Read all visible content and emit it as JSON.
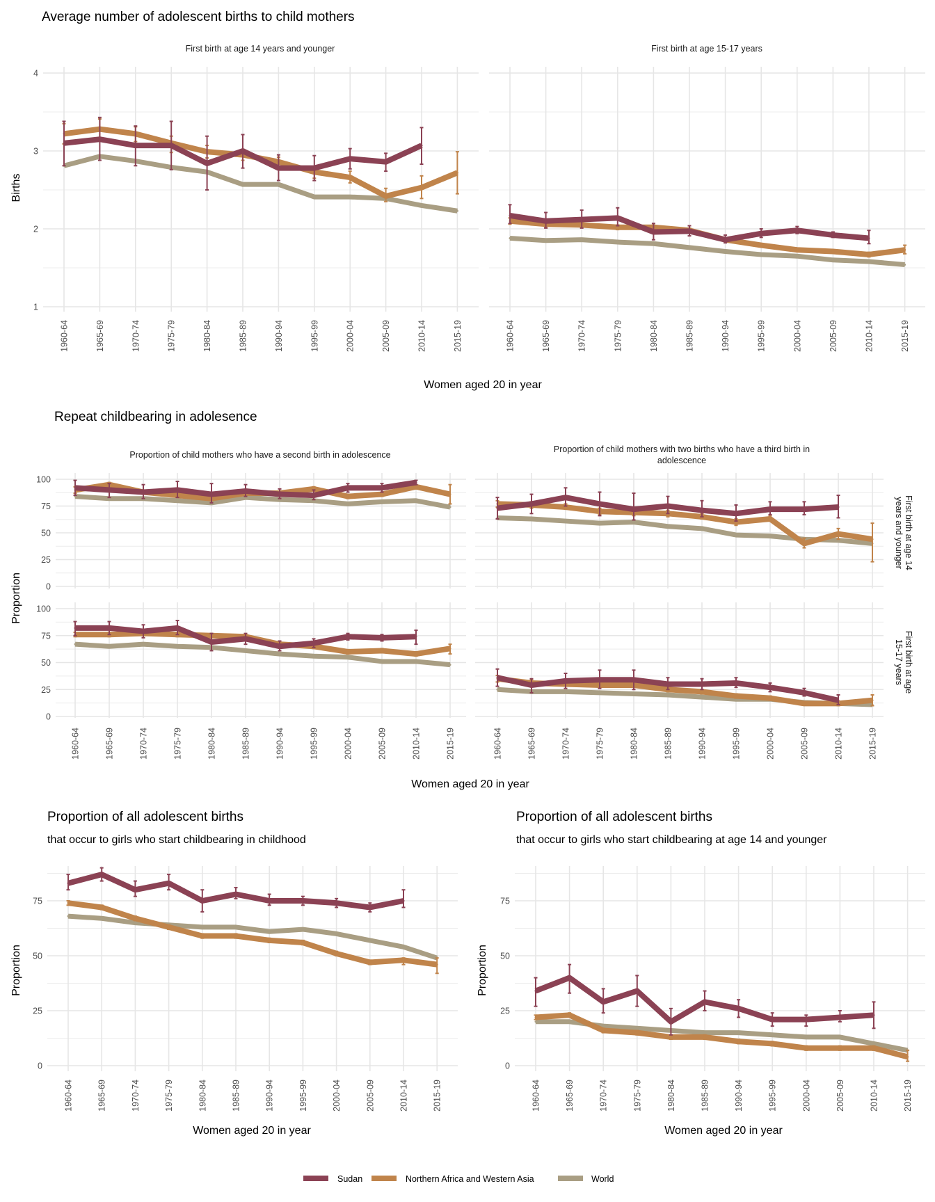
{
  "x_categories": [
    "1960-64",
    "1965-69",
    "1970-74",
    "1975-79",
    "1980-84",
    "1985-89",
    "1990-94",
    "1995-99",
    "2000-04",
    "2005-09",
    "2010-14",
    "2015-19"
  ],
  "legend": [
    {
      "name": "Sudan",
      "color": "#8b4254"
    },
    {
      "name": "Northern Africa and Western Asia",
      "color": "#c0844b"
    },
    {
      "name": "World",
      "color": "#a99e83"
    }
  ],
  "sections": {
    "top": {
      "title": "Average number of adolescent births to child mothers",
      "ylabel": "Births",
      "xlabel": "Women aged 20 in year"
    },
    "middle": {
      "title": "Repeat childbearing in adolesence",
      "ylabel": "Proportion",
      "xlabel": "Women aged 20 in year",
      "strips": [
        "First birth at age 14 years and younger",
        "First birth at age 15-17 years"
      ]
    },
    "bottom_left": {
      "title": "Proportion of all adolescent births",
      "subtitle": "that occur to girls who start childbearing in childhood",
      "ylabel": "Proportion",
      "xlabel": "Women aged 20 in year"
    },
    "bottom_right": {
      "title": "Proportion of all adolescent births",
      "subtitle": "that occur to girls who start childbearing at age 14 and younger",
      "ylabel": "Proportion",
      "xlabel": "Women aged 20 in year"
    }
  },
  "chart_data": [
    {
      "id": "births_14",
      "type": "line",
      "title": "First birth at age 14 years and younger",
      "ylabel": "Births",
      "xlabel": "Women aged 20 in year",
      "ylim": [
        1,
        4
      ],
      "yticks": [
        1,
        2,
        3,
        4
      ],
      "series": [
        {
          "name": "Sudan",
          "values": [
            3.1,
            3.15,
            3.07,
            3.07,
            2.84,
            3.0,
            2.78,
            2.78,
            2.9,
            2.86,
            3.07,
            null
          ],
          "lower": [
            2.81,
            2.88,
            2.81,
            2.76,
            2.5,
            2.78,
            2.62,
            2.62,
            2.77,
            2.74,
            2.83,
            null
          ],
          "upper": [
            3.38,
            3.43,
            3.32,
            3.38,
            3.19,
            3.21,
            2.95,
            2.94,
            3.03,
            2.97,
            3.3,
            null
          ]
        },
        {
          "name": "Northern Africa and Western Asia",
          "values": [
            3.22,
            3.28,
            3.22,
            3.1,
            2.99,
            2.95,
            2.86,
            2.73,
            2.66,
            2.42,
            2.53,
            2.72
          ],
          "lower": [
            3.09,
            3.15,
            3.12,
            2.98,
            2.91,
            2.88,
            2.79,
            2.65,
            2.59,
            2.35,
            2.39,
            2.45
          ],
          "upper": [
            3.35,
            3.41,
            3.31,
            3.19,
            3.07,
            3.02,
            2.92,
            2.8,
            2.74,
            2.52,
            2.68,
            2.99
          ]
        },
        {
          "name": "World",
          "values": [
            2.81,
            2.93,
            2.87,
            2.79,
            2.73,
            2.57,
            2.57,
            2.41,
            2.41,
            2.39,
            2.3,
            2.23
          ]
        }
      ]
    },
    {
      "id": "births_15_17",
      "type": "line",
      "title": "First birth at age 15-17 years",
      "ylabel": "Births",
      "xlabel": "Women aged 20 in year",
      "ylim": [
        1,
        4
      ],
      "yticks": [
        1,
        2,
        3,
        4
      ],
      "series": [
        {
          "name": "Sudan",
          "values": [
            2.17,
            2.1,
            2.12,
            2.14,
            1.96,
            1.97,
            1.86,
            1.94,
            1.98,
            1.92,
            1.88,
            null
          ],
          "lower": [
            2.07,
            2.01,
            2.01,
            2.04,
            1.86,
            1.91,
            1.82,
            1.89,
            1.94,
            1.89,
            1.81,
            null
          ],
          "upper": [
            2.31,
            2.21,
            2.24,
            2.27,
            2.07,
            2.04,
            1.92,
            2.0,
            2.03,
            1.96,
            1.98,
            null
          ]
        },
        {
          "name": "Northern Africa and Western Asia",
          "values": [
            2.1,
            2.06,
            2.05,
            2.02,
            2.02,
            1.98,
            1.86,
            1.79,
            1.73,
            1.71,
            1.67,
            1.73
          ],
          "lower": [
            2.06,
            2.02,
            2.02,
            1.99,
            1.99,
            1.95,
            1.84,
            1.77,
            1.71,
            1.69,
            1.64,
            1.68
          ],
          "upper": [
            2.14,
            2.1,
            2.09,
            2.05,
            2.05,
            2.01,
            1.88,
            1.81,
            1.75,
            1.73,
            1.7,
            1.79
          ]
        },
        {
          "name": "World",
          "values": [
            1.88,
            1.85,
            1.86,
            1.83,
            1.81,
            1.76,
            1.71,
            1.67,
            1.65,
            1.6,
            1.58,
            1.54
          ]
        }
      ]
    },
    {
      "id": "second_birth_14",
      "type": "line",
      "title": "Proportion of child mothers who have a second birth in adolescence",
      "facet": "First birth at age 14 years and younger",
      "ylabel": "Proportion",
      "ylim": [
        0,
        100
      ],
      "yticks": [
        0,
        25,
        50,
        75,
        100
      ],
      "series": [
        {
          "name": "Sudan",
          "values": [
            92,
            90,
            88,
            90,
            86,
            89,
            86,
            85,
            92,
            92,
            97,
            null
          ],
          "lower": [
            85,
            83,
            82,
            83,
            78,
            84,
            82,
            81,
            88,
            88,
            95,
            null
          ],
          "upper": [
            99,
            96,
            95,
            98,
            96,
            95,
            91,
            90,
            96,
            96,
            99,
            null
          ]
        },
        {
          "name": "Northern Africa and Western Asia",
          "values": [
            90,
            95,
            88,
            85,
            82,
            87,
            87,
            91,
            84,
            86,
            93,
            86
          ],
          "lower": [
            87,
            93,
            86,
            83,
            80,
            85,
            85,
            89,
            82,
            84,
            91,
            77
          ],
          "upper": [
            93,
            97,
            90,
            87,
            84,
            89,
            89,
            93,
            86,
            88,
            95,
            95
          ]
        },
        {
          "name": "World",
          "values": [
            84,
            82,
            82,
            80,
            78,
            83,
            81,
            80,
            77,
            79,
            80,
            74
          ]
        }
      ]
    },
    {
      "id": "second_birth_15_17",
      "type": "line",
      "title": "Proportion of child mothers who have a second birth in adolescence",
      "facet": "First birth at age 15-17 years",
      "ylabel": "Proportion",
      "ylim": [
        0,
        100
      ],
      "yticks": [
        0,
        25,
        50,
        75,
        100
      ],
      "series": [
        {
          "name": "Sudan",
          "values": [
            82,
            82,
            79,
            82,
            69,
            72,
            65,
            68,
            74,
            73,
            74,
            null
          ],
          "lower": [
            75,
            76,
            73,
            76,
            61,
            67,
            61,
            64,
            71,
            70,
            67,
            null
          ],
          "upper": [
            88,
            88,
            85,
            89,
            77,
            77,
            70,
            72,
            77,
            76,
            80,
            null
          ]
        },
        {
          "name": "Northern Africa and Western Asia",
          "values": [
            76,
            76,
            77,
            76,
            75,
            74,
            67,
            65,
            60,
            61,
            58,
            63
          ],
          "lower": [
            74,
            74,
            75,
            74,
            73,
            72,
            65,
            63,
            58,
            59,
            56,
            58
          ],
          "upper": [
            78,
            78,
            79,
            78,
            77,
            76,
            69,
            67,
            62,
            63,
            60,
            67
          ]
        },
        {
          "name": "World",
          "values": [
            67,
            65,
            67,
            65,
            64,
            61,
            58,
            56,
            55,
            51,
            51,
            48
          ]
        }
      ]
    },
    {
      "id": "third_birth_14",
      "type": "line",
      "title": "Proportion of child mothers with two births who have a third birth in adolescence",
      "facet": "First birth at age 14 years and younger",
      "ylabel": "Proportion",
      "ylim": [
        0,
        100
      ],
      "yticks": [
        0,
        25,
        50,
        75,
        100
      ],
      "series": [
        {
          "name": "Sudan",
          "values": [
            73,
            77,
            83,
            77,
            72,
            75,
            71,
            68,
            72,
            72,
            74,
            null
          ],
          "lower": [
            63,
            68,
            75,
            66,
            62,
            68,
            65,
            61,
            67,
            67,
            64,
            null
          ],
          "upper": [
            83,
            86,
            92,
            88,
            87,
            84,
            80,
            76,
            79,
            79,
            85,
            null
          ]
        },
        {
          "name": "Northern Africa and Western Asia",
          "values": [
            77,
            76,
            74,
            70,
            69,
            68,
            65,
            60,
            63,
            40,
            49,
            44
          ],
          "lower": [
            74,
            73,
            72,
            67,
            66,
            65,
            63,
            57,
            61,
            36,
            44,
            23
          ],
          "upper": [
            80,
            79,
            77,
            73,
            72,
            71,
            68,
            63,
            66,
            45,
            54,
            59
          ]
        },
        {
          "name": "World",
          "values": [
            64,
            63,
            61,
            59,
            60,
            56,
            54,
            48,
            47,
            44,
            43,
            40
          ]
        }
      ]
    },
    {
      "id": "third_birth_15_17",
      "type": "line",
      "title": "Proportion of child mothers with two births who have a third birth in adolescence",
      "facet": "First birth at age 15-17 years",
      "ylabel": "Proportion",
      "ylim": [
        0,
        100
      ],
      "yticks": [
        0,
        25,
        50,
        75,
        100
      ],
      "series": [
        {
          "name": "Sudan",
          "values": [
            36,
            29,
            33,
            34,
            34,
            30,
            30,
            31,
            27,
            22,
            15,
            null
          ],
          "lower": [
            28,
            22,
            26,
            26,
            25,
            25,
            25,
            27,
            23,
            19,
            11,
            null
          ],
          "upper": [
            44,
            35,
            40,
            43,
            43,
            36,
            35,
            36,
            31,
            26,
            20,
            null
          ]
        },
        {
          "name": "Northern Africa and Western Asia",
          "values": [
            35,
            31,
            30,
            29,
            29,
            25,
            23,
            19,
            17,
            12,
            12,
            15
          ],
          "lower": [
            32,
            28,
            28,
            27,
            27,
            23,
            21,
            17,
            15,
            11,
            10,
            10
          ],
          "upper": [
            38,
            34,
            32,
            31,
            31,
            27,
            25,
            21,
            19,
            14,
            14,
            20
          ]
        },
        {
          "name": "World",
          "values": [
            25,
            23,
            23,
            22,
            21,
            20,
            18,
            16,
            16,
            13,
            12,
            11
          ]
        }
      ]
    },
    {
      "id": "share_childhood",
      "type": "line",
      "title": "Proportion of all adolescent births",
      "subtitle": "that occur to girls who start childbearing in childhood",
      "ylabel": "Proportion",
      "xlabel": "Women aged 20 in year",
      "ylim": [
        0,
        90
      ],
      "yticks": [
        0,
        25,
        50,
        75
      ],
      "series": [
        {
          "name": "Sudan",
          "values": [
            83,
            87,
            80,
            83,
            75,
            78,
            75,
            75,
            74,
            72,
            75,
            null
          ],
          "lower": [
            80,
            84,
            77,
            80,
            70,
            76,
            73,
            73,
            72,
            70,
            72,
            null
          ],
          "upper": [
            87,
            90,
            84,
            87,
            80,
            81,
            78,
            77,
            76,
            74,
            80,
            null
          ]
        },
        {
          "name": "Northern Africa and Western Asia",
          "values": [
            74,
            72,
            67,
            63,
            59,
            59,
            57,
            56,
            51,
            47,
            48,
            46
          ],
          "lower": [
            73,
            71,
            66,
            62,
            58,
            58,
            56,
            55,
            50,
            46,
            46,
            42
          ],
          "upper": [
            75,
            73,
            68,
            64,
            60,
            60,
            58,
            57,
            52,
            48,
            49,
            49
          ]
        },
        {
          "name": "World",
          "values": [
            68,
            67,
            65,
            64,
            63,
            63,
            61,
            62,
            60,
            57,
            54,
            49
          ]
        }
      ]
    },
    {
      "id": "share_14",
      "type": "line",
      "title": "Proportion of all adolescent births",
      "subtitle": "that occur to girls who start childbearing at age 14 and younger",
      "ylabel": "Proportion",
      "xlabel": "Women aged 20 in year",
      "ylim": [
        0,
        90
      ],
      "yticks": [
        0,
        25,
        50,
        75
      ],
      "series": [
        {
          "name": "Sudan",
          "values": [
            34,
            40,
            29,
            34,
            20,
            29,
            26,
            21,
            21,
            22,
            23,
            null
          ],
          "lower": [
            27,
            33,
            24,
            27,
            14,
            25,
            22,
            18,
            18,
            20,
            17,
            null
          ],
          "upper": [
            40,
            46,
            35,
            41,
            26,
            34,
            30,
            24,
            23,
            25,
            29,
            null
          ]
        },
        {
          "name": "Northern Africa and Western Asia",
          "values": [
            22,
            23,
            16,
            15,
            13,
            13,
            11,
            10,
            8,
            8,
            8,
            4
          ],
          "lower": [
            21,
            22,
            15,
            14,
            12,
            12,
            10,
            9,
            7,
            7,
            7,
            2
          ],
          "upper": [
            23,
            24,
            17,
            16,
            14,
            14,
            12,
            11,
            9,
            9,
            9,
            7
          ]
        },
        {
          "name": "World",
          "values": [
            20,
            20,
            18,
            17,
            16,
            15,
            15,
            14,
            13,
            13,
            10,
            7
          ]
        }
      ]
    }
  ]
}
